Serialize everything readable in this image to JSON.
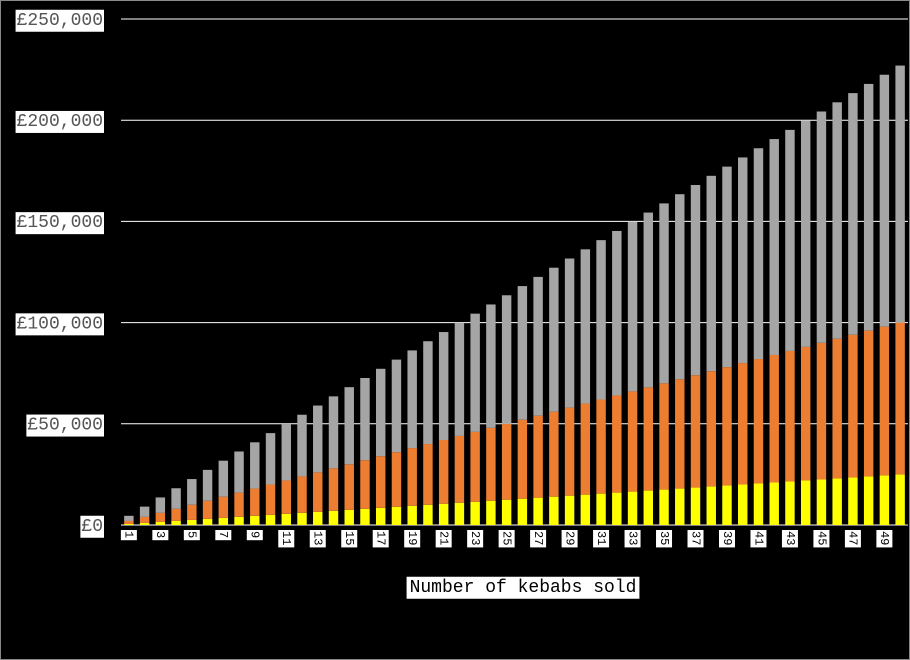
{
  "chart_data": {
    "type": "stacked-bar",
    "x_label": "Number of kebabs sold",
    "categories": [
      "1",
      null,
      "3",
      null,
      "5",
      null,
      "7",
      null,
      "9",
      null,
      "11",
      null,
      "13",
      null,
      "15",
      null,
      "17",
      null,
      "19",
      null,
      "21",
      null,
      "23",
      null,
      "25",
      null,
      "27",
      null,
      "29",
      null,
      "31",
      null,
      "33",
      null,
      "35",
      null,
      "37",
      null,
      "39",
      null,
      "41",
      null,
      "43",
      null,
      "45",
      null,
      "47",
      null,
      "49",
      null
    ],
    "series": [
      {
        "color": "#ffff00",
        "values": [
          500,
          1000,
          1500,
          2000,
          2500,
          3000,
          3500,
          4000,
          4500,
          5000,
          5500,
          6000,
          6500,
          7000,
          7500,
          8000,
          8500,
          9000,
          9500,
          10000,
          10500,
          11000,
          11500,
          12000,
          12500,
          13000,
          13500,
          14000,
          14500,
          15000,
          15500,
          16000,
          16500,
          17000,
          17500,
          18000,
          18500,
          19000,
          19500,
          20000,
          20500,
          21000,
          21500,
          22000,
          22500,
          23000,
          23500,
          24000,
          24500,
          25000
        ]
      },
      {
        "color": "#ed7d31",
        "values": [
          1500,
          3000,
          4500,
          6000,
          7500,
          9000,
          10500,
          12000,
          13500,
          15000,
          16500,
          18000,
          19500,
          21000,
          22500,
          24000,
          25500,
          27000,
          28500,
          30000,
          31500,
          33000,
          34500,
          36000,
          37500,
          39000,
          40500,
          42000,
          43500,
          45000,
          46500,
          48000,
          49500,
          51000,
          52500,
          54000,
          55500,
          57000,
          58500,
          60000,
          61500,
          63000,
          64500,
          66000,
          67500,
          69000,
          70500,
          72000,
          73500,
          75000
        ]
      },
      {
        "color": "#a5a5a5",
        "values": [
          2540,
          5080,
          7620,
          10160,
          12700,
          15240,
          17780,
          20320,
          22860,
          25400,
          27940,
          30480,
          33020,
          35560,
          38100,
          40640,
          43180,
          45720,
          48260,
          50800,
          53340,
          55880,
          58420,
          60960,
          63500,
          66040,
          68580,
          71120,
          73660,
          76200,
          78740,
          81280,
          83820,
          86360,
          88900,
          91440,
          93980,
          96520,
          99060,
          101600,
          104140,
          106680,
          109220,
          111760,
          114300,
          116840,
          119380,
          121920,
          124460,
          127000
        ]
      }
    ],
    "ylim": [
      0,
      250000
    ],
    "yticks": [
      {
        "value": 0,
        "label": "£0"
      },
      {
        "value": 50000,
        "label": "£50,000"
      },
      {
        "value": 100000,
        "label": "£100,000"
      },
      {
        "value": 150000,
        "label": "£150,000"
      },
      {
        "value": 200000,
        "label": "£200,000"
      },
      {
        "value": 250000,
        "label": "£250,000"
      }
    ],
    "grid": true
  }
}
